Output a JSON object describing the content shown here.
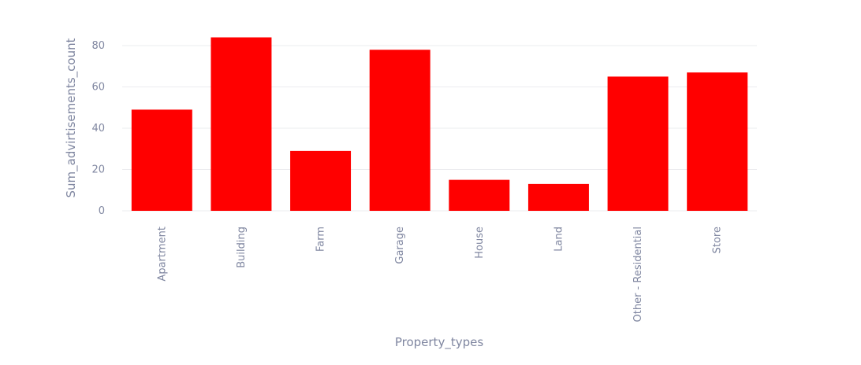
{
  "chart_data": {
    "type": "bar",
    "title": "",
    "xlabel": "Property_types",
    "ylabel": "Sum_advirtisements_count",
    "categories": [
      "Apartment",
      "Building",
      "Farm",
      "Garage",
      "House",
      "Land",
      "Other - Residential",
      "Store"
    ],
    "values": [
      49,
      84,
      29,
      78,
      15,
      13,
      65,
      67
    ],
    "ylim": [
      0,
      88
    ],
    "yticks": [
      0,
      20,
      40,
      60,
      80
    ],
    "grid": true,
    "bar_color": "#ff0000"
  }
}
